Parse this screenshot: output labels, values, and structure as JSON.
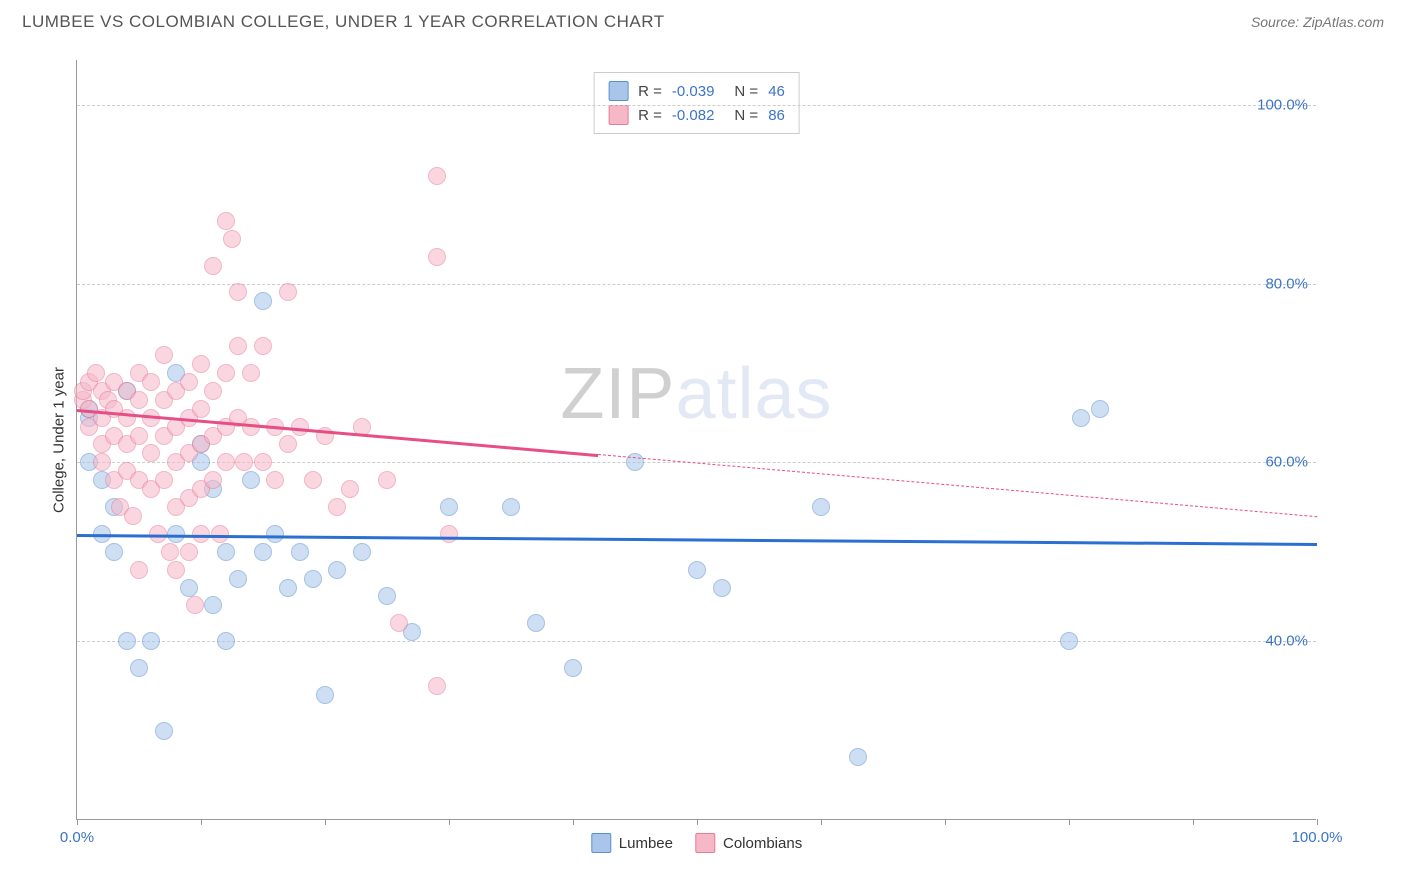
{
  "header": {
    "title": "LUMBEE VS COLOMBIAN COLLEGE, UNDER 1 YEAR CORRELATION CHART",
    "source_prefix": "Source: ",
    "source_name": "ZipAtlas.com"
  },
  "chart": {
    "type": "scatter",
    "ylabel": "College, Under 1 year",
    "background_color": "#ffffff",
    "grid_color": "#cccccc",
    "axis_color": "#999999",
    "xlim": [
      0,
      100
    ],
    "ylim": [
      20,
      105
    ],
    "tick_color": "#3b74c5",
    "marker_radius": 9,
    "marker_stroke_width": 1.2,
    "ytick_labels": [
      {
        "v": 40,
        "label": "40.0%"
      },
      {
        "v": 60,
        "label": "60.0%"
      },
      {
        "v": 80,
        "label": "80.0%"
      },
      {
        "v": 100,
        "label": "100.0%"
      }
    ],
    "xtick_marks": [
      0,
      10,
      20,
      30,
      40,
      50,
      60,
      70,
      80,
      90,
      100
    ],
    "xtick_labels": [
      {
        "v": 0,
        "label": "0.0%"
      },
      {
        "v": 100,
        "label": "100.0%"
      }
    ],
    "series": [
      {
        "name": "Lumbee",
        "fill": "#a9c6ea",
        "stroke": "#5b8fd0",
        "fill_opacity": 0.55,
        "R": "-0.039",
        "N": "46",
        "trend": {
          "y_start": 52,
          "y_end": 51,
          "solid_until_x": 100,
          "color": "#2b6fd1"
        },
        "points": [
          [
            1,
            65
          ],
          [
            1,
            66
          ],
          [
            1,
            60
          ],
          [
            2,
            58
          ],
          [
            2,
            52
          ],
          [
            3,
            55
          ],
          [
            3,
            50
          ],
          [
            4,
            68
          ],
          [
            4,
            40
          ],
          [
            5,
            37
          ],
          [
            6,
            40
          ],
          [
            7,
            30
          ],
          [
            8,
            52
          ],
          [
            8,
            70
          ],
          [
            9,
            46
          ],
          [
            10,
            62
          ],
          [
            10,
            60
          ],
          [
            11,
            57
          ],
          [
            11,
            44
          ],
          [
            12,
            40
          ],
          [
            12,
            50
          ],
          [
            13,
            47
          ],
          [
            14,
            58
          ],
          [
            15,
            78
          ],
          [
            15,
            50
          ],
          [
            16,
            52
          ],
          [
            17,
            46
          ],
          [
            18,
            50
          ],
          [
            19,
            47
          ],
          [
            20,
            34
          ],
          [
            21,
            48
          ],
          [
            23,
            50
          ],
          [
            25,
            45
          ],
          [
            27,
            41
          ],
          [
            30,
            55
          ],
          [
            35,
            55
          ],
          [
            37,
            42
          ],
          [
            40,
            37
          ],
          [
            45,
            60
          ],
          [
            50,
            48
          ],
          [
            52,
            46
          ],
          [
            60,
            55
          ],
          [
            63,
            27
          ],
          [
            80,
            40
          ],
          [
            81,
            65
          ],
          [
            82.5,
            66
          ]
        ]
      },
      {
        "name": "Colombians",
        "fill": "#f6b8c7",
        "stroke": "#e87a9a",
        "fill_opacity": 0.55,
        "R": "-0.082",
        "N": "86",
        "trend": {
          "y_start": 66,
          "y_end": 54,
          "solid_until_x": 42,
          "color": "#e64e86"
        },
        "points": [
          [
            0.5,
            67
          ],
          [
            0.5,
            68
          ],
          [
            1,
            69
          ],
          [
            1,
            66
          ],
          [
            1,
            64
          ],
          [
            1.5,
            70
          ],
          [
            2,
            68
          ],
          [
            2,
            65
          ],
          [
            2,
            62
          ],
          [
            2,
            60
          ],
          [
            2.5,
            67
          ],
          [
            3,
            69
          ],
          [
            3,
            66
          ],
          [
            3,
            63
          ],
          [
            3,
            58
          ],
          [
            3.5,
            55
          ],
          [
            4,
            68
          ],
          [
            4,
            65
          ],
          [
            4,
            62
          ],
          [
            4,
            59
          ],
          [
            4.5,
            54
          ],
          [
            5,
            70
          ],
          [
            5,
            67
          ],
          [
            5,
            63
          ],
          [
            5,
            58
          ],
          [
            5,
            48
          ],
          [
            6,
            69
          ],
          [
            6,
            65
          ],
          [
            6,
            61
          ],
          [
            6,
            57
          ],
          [
            6.5,
            52
          ],
          [
            7,
            72
          ],
          [
            7,
            67
          ],
          [
            7,
            63
          ],
          [
            7,
            58
          ],
          [
            7.5,
            50
          ],
          [
            8,
            68
          ],
          [
            8,
            64
          ],
          [
            8,
            60
          ],
          [
            8,
            55
          ],
          [
            8,
            48
          ],
          [
            9,
            69
          ],
          [
            9,
            65
          ],
          [
            9,
            61
          ],
          [
            9,
            56
          ],
          [
            9,
            50
          ],
          [
            9.5,
            44
          ],
          [
            10,
            71
          ],
          [
            10,
            66
          ],
          [
            10,
            62
          ],
          [
            10,
            57
          ],
          [
            10,
            52
          ],
          [
            11,
            82
          ],
          [
            11,
            68
          ],
          [
            11,
            63
          ],
          [
            11,
            58
          ],
          [
            11.5,
            52
          ],
          [
            12,
            87
          ],
          [
            12,
            70
          ],
          [
            12,
            64
          ],
          [
            12,
            60
          ],
          [
            12.5,
            85
          ],
          [
            13,
            79
          ],
          [
            13,
            73
          ],
          [
            13,
            65
          ],
          [
            13.5,
            60
          ],
          [
            14,
            70
          ],
          [
            14,
            64
          ],
          [
            15,
            73
          ],
          [
            15,
            60
          ],
          [
            16,
            64
          ],
          [
            16,
            58
          ],
          [
            17,
            79
          ],
          [
            17,
            62
          ],
          [
            18,
            64
          ],
          [
            19,
            58
          ],
          [
            20,
            63
          ],
          [
            21,
            55
          ],
          [
            22,
            57
          ],
          [
            23,
            64
          ],
          [
            25,
            58
          ],
          [
            26,
            42
          ],
          [
            29,
            92
          ],
          [
            29,
            83
          ],
          [
            29,
            35
          ],
          [
            30,
            52
          ]
        ]
      }
    ],
    "legend_bottom": [
      {
        "label": "Lumbee",
        "fill": "#a9c6ea",
        "stroke": "#5b8fd0"
      },
      {
        "label": "Colombians",
        "fill": "#f6b8c7",
        "stroke": "#e87a9a"
      }
    ],
    "watermark": {
      "bold": "ZIP",
      "rest": "atlas"
    }
  }
}
